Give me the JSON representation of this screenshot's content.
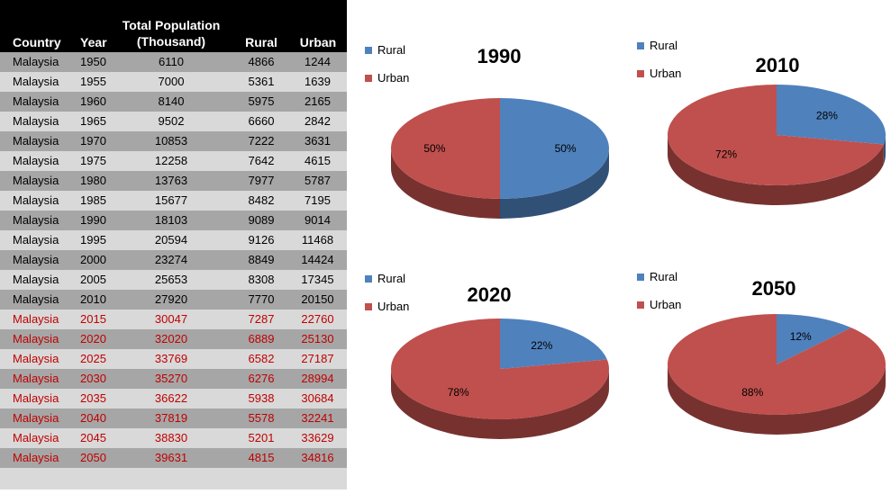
{
  "table": {
    "headers": {
      "country": "Country",
      "year": "Year",
      "total_line1": "Total Population",
      "total_line2": "(Thousand)",
      "rural": "Rural",
      "urban": "Urban"
    },
    "projected_color": "#c00000",
    "rows": [
      {
        "country": "Malaysia",
        "year": "1950",
        "total": "6110",
        "rural": "4866",
        "urban": "1244",
        "projected": false
      },
      {
        "country": "Malaysia",
        "year": "1955",
        "total": "7000",
        "rural": "5361",
        "urban": "1639",
        "projected": false
      },
      {
        "country": "Malaysia",
        "year": "1960",
        "total": "8140",
        "rural": "5975",
        "urban": "2165",
        "projected": false
      },
      {
        "country": "Malaysia",
        "year": "1965",
        "total": "9502",
        "rural": "6660",
        "urban": "2842",
        "projected": false
      },
      {
        "country": "Malaysia",
        "year": "1970",
        "total": "10853",
        "rural": "7222",
        "urban": "3631",
        "projected": false
      },
      {
        "country": "Malaysia",
        "year": "1975",
        "total": "12258",
        "rural": "7642",
        "urban": "4615",
        "projected": false
      },
      {
        "country": "Malaysia",
        "year": "1980",
        "total": "13763",
        "rural": "7977",
        "urban": "5787",
        "projected": false
      },
      {
        "country": "Malaysia",
        "year": "1985",
        "total": "15677",
        "rural": "8482",
        "urban": "7195",
        "projected": false
      },
      {
        "country": "Malaysia",
        "year": "1990",
        "total": "18103",
        "rural": "9089",
        "urban": "9014",
        "projected": false
      },
      {
        "country": "Malaysia",
        "year": "1995",
        "total": "20594",
        "rural": "9126",
        "urban": "11468",
        "projected": false
      },
      {
        "country": "Malaysia",
        "year": "2000",
        "total": "23274",
        "rural": "8849",
        "urban": "14424",
        "projected": false
      },
      {
        "country": "Malaysia",
        "year": "2005",
        "total": "25653",
        "rural": "8308",
        "urban": "17345",
        "projected": false
      },
      {
        "country": "Malaysia",
        "year": "2010",
        "total": "27920",
        "rural": "7770",
        "urban": "20150",
        "projected": false
      },
      {
        "country": "Malaysia",
        "year": "2015",
        "total": "30047",
        "rural": "7287",
        "urban": "22760",
        "projected": true
      },
      {
        "country": "Malaysia",
        "year": "2020",
        "total": "32020",
        "rural": "6889",
        "urban": "25130",
        "projected": true
      },
      {
        "country": "Malaysia",
        "year": "2025",
        "total": "33769",
        "rural": "6582",
        "urban": "27187",
        "projected": true
      },
      {
        "country": "Malaysia",
        "year": "2030",
        "total": "35270",
        "rural": "6276",
        "urban": "28994",
        "projected": true
      },
      {
        "country": "Malaysia",
        "year": "2035",
        "total": "36622",
        "rural": "5938",
        "urban": "30684",
        "projected": true
      },
      {
        "country": "Malaysia",
        "year": "2040",
        "total": "37819",
        "rural": "5578",
        "urban": "32241",
        "projected": true
      },
      {
        "country": "Malaysia",
        "year": "2045",
        "total": "38830",
        "rural": "5201",
        "urban": "33629",
        "projected": true
      },
      {
        "country": "Malaysia",
        "year": "2050",
        "total": "39631",
        "rural": "4815",
        "urban": "34816",
        "projected": true
      }
    ]
  },
  "colors": {
    "rural": "#4f81bd",
    "urban": "#c0504d",
    "row_dark": "#a6a6a6",
    "row_light": "#d9d9d9"
  },
  "chart_data": [
    {
      "type": "pie",
      "title": "1990",
      "categories": [
        "Rural",
        "Urban"
      ],
      "values": [
        50,
        50
      ],
      "labels": [
        "50%",
        "50%"
      ]
    },
    {
      "type": "pie",
      "title": "2010",
      "categories": [
        "Rural",
        "Urban"
      ],
      "values": [
        28,
        72
      ],
      "labels": [
        "28%",
        "72%"
      ]
    },
    {
      "type": "pie",
      "title": "2020",
      "categories": [
        "Rural",
        "Urban"
      ],
      "values": [
        22,
        78
      ],
      "labels": [
        "22%",
        "78%"
      ]
    },
    {
      "type": "pie",
      "title": "2050",
      "categories": [
        "Rural",
        "Urban"
      ],
      "values": [
        12,
        88
      ],
      "labels": [
        "12%",
        "88%"
      ]
    }
  ]
}
